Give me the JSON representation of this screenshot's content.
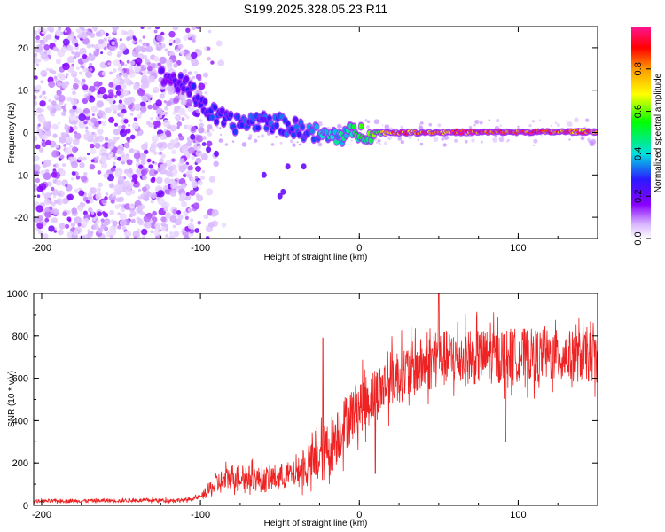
{
  "title": "S199.2025.328.05.23.R11",
  "chart_data": [
    {
      "type": "heatmap",
      "xlabel": "Height of straight line (km)",
      "ylabel": "Frequency (Hz)",
      "xlim": [
        -205,
        150
      ],
      "ylim": [
        -25,
        25
      ],
      "xticks": [
        -200,
        -100,
        0,
        100
      ],
      "yticks": [
        -20,
        -10,
        0,
        10,
        20
      ],
      "colorbar": {
        "label": "Normalized spectral amplitude",
        "range": [
          0,
          1
        ],
        "ticks": [
          0.0,
          0.2,
          0.4,
          0.6,
          0.8
        ],
        "tick_labels": [
          "0.0",
          "0.2",
          "0.4",
          "0.6",
          "0.8"
        ]
      },
      "ridge": {
        "description_points": [
          {
            "x": -120,
            "f": 13
          },
          {
            "x": -105,
            "f": 10
          },
          {
            "x": -95,
            "f": 5
          },
          {
            "x": -80,
            "f": 2
          },
          {
            "x": -60,
            "f": 3
          },
          {
            "x": -40,
            "f": 1
          },
          {
            "x": -20,
            "f": -1
          },
          {
            "x": 0,
            "f": 0
          },
          {
            "x": 20,
            "f": 0
          },
          {
            "x": 150,
            "f": 0.2
          }
        ],
        "amplitude_points": [
          {
            "x": -120,
            "a": 0.2
          },
          {
            "x": -100,
            "a": 0.28
          },
          {
            "x": -80,
            "a": 0.3
          },
          {
            "x": -40,
            "a": 0.32
          },
          {
            "x": -10,
            "a": 0.45
          },
          {
            "x": 10,
            "a": 0.6
          },
          {
            "x": 25,
            "a": 0.9
          },
          {
            "x": 120,
            "a": 0.95
          },
          {
            "x": 150,
            "a": 0.85
          }
        ]
      }
    },
    {
      "type": "line",
      "xlabel": "Height of straight line (km)",
      "ylabel": "SNR (10 * v/v)",
      "xlim": [
        -205,
        150
      ],
      "ylim": [
        0,
        1000
      ],
      "xticks": [
        -200,
        -100,
        0,
        100
      ],
      "yticks": [
        0,
        200,
        400,
        600,
        800,
        1000
      ],
      "color": "#ee2222",
      "trend": [
        {
          "x": -205,
          "y": 20
        },
        {
          "x": -110,
          "y": 25
        },
        {
          "x": -100,
          "y": 40
        },
        {
          "x": -90,
          "y": 100
        },
        {
          "x": -80,
          "y": 140
        },
        {
          "x": -60,
          "y": 120
        },
        {
          "x": -40,
          "y": 150
        },
        {
          "x": -30,
          "y": 190
        },
        {
          "x": -20,
          "y": 260
        },
        {
          "x": -10,
          "y": 380
        },
        {
          "x": 0,
          "y": 470
        },
        {
          "x": 10,
          "y": 520
        },
        {
          "x": 20,
          "y": 600
        },
        {
          "x": 50,
          "y": 690
        },
        {
          "x": 100,
          "y": 710
        },
        {
          "x": 150,
          "y": 700
        }
      ],
      "spread": [
        {
          "x": -205,
          "s": 10
        },
        {
          "x": -100,
          "s": 12
        },
        {
          "x": -90,
          "s": 70
        },
        {
          "x": -40,
          "s": 80
        },
        {
          "x": -20,
          "s": 180
        },
        {
          "x": 0,
          "s": 160
        },
        {
          "x": 50,
          "s": 170
        },
        {
          "x": 150,
          "s": 150
        }
      ],
      "features": [
        {
          "x": -23,
          "y": 790
        },
        {
          "x": 50,
          "y": 1000
        },
        {
          "x": 10,
          "y": 150
        },
        {
          "x": 92,
          "y": 300
        }
      ]
    }
  ]
}
